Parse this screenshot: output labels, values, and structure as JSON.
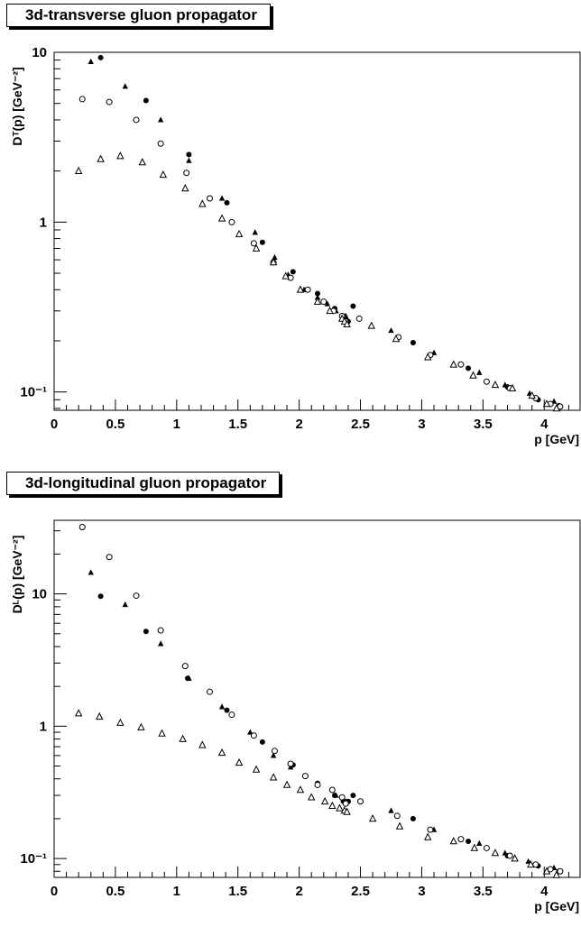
{
  "chart_data": [
    {
      "type": "scatter",
      "title": "3d-transverse gluon propagator",
      "xlabel": "p [GeV]",
      "ylabel": "Dᵀ(p) [GeV⁻²]",
      "xlim": [
        0,
        4.3
      ],
      "ylim": [
        0.078,
        10
      ],
      "yscale": "log",
      "xticks": [
        0,
        0.5,
        1,
        1.5,
        2,
        2.5,
        3,
        3.5,
        4
      ],
      "xtick_labels": [
        "0",
        "0.5",
        "1",
        "1.5",
        "2",
        "2.5",
        "3",
        "3.5",
        "4"
      ],
      "yticks": [
        0.1,
        1,
        10
      ],
      "ytick_labels": [
        "10⁻¹",
        "1",
        "10"
      ],
      "grid": false,
      "series": [
        {
          "marker": "filled-triangle",
          "x": [
            0.3,
            0.58,
            0.87,
            1.1,
            1.37,
            1.64,
            1.8,
            1.91,
            2.04,
            2.15,
            2.23,
            2.3,
            2.38,
            2.75,
            3.1,
            3.47,
            3.68,
            3.88,
            4.08
          ],
          "y": [
            8.8,
            6.3,
            4.0,
            2.3,
            1.38,
            0.87,
            0.62,
            0.49,
            0.4,
            0.36,
            0.33,
            0.3,
            0.28,
            0.23,
            0.17,
            0.13,
            0.11,
            0.098,
            0.088
          ]
        },
        {
          "marker": "filled-circle",
          "x": [
            0.38,
            0.75,
            1.1,
            1.41,
            1.7,
            1.95,
            2.15,
            2.29,
            2.36,
            2.38,
            2.4,
            2.44,
            2.93,
            3.38,
            3.7,
            3.95,
            4.12
          ],
          "y": [
            9.3,
            5.2,
            2.5,
            1.3,
            0.76,
            0.51,
            0.38,
            0.31,
            0.28,
            0.27,
            0.26,
            0.32,
            0.195,
            0.138,
            0.107,
            0.09,
            0.083
          ]
        },
        {
          "marker": "open-circle",
          "x": [
            0.23,
            0.45,
            0.67,
            0.87,
            1.08,
            1.27,
            1.45,
            1.63,
            1.79,
            1.93,
            2.07,
            2.2,
            2.28,
            2.35,
            2.38,
            2.49,
            2.81,
            3.07,
            3.32,
            3.53,
            3.72,
            3.93,
            4.05,
            4.13
          ],
          "y": [
            5.3,
            5.1,
            4.0,
            2.9,
            1.95,
            1.38,
            1.0,
            0.75,
            0.58,
            0.47,
            0.4,
            0.34,
            0.3,
            0.28,
            0.26,
            0.27,
            0.21,
            0.165,
            0.145,
            0.115,
            0.105,
            0.092,
            0.085,
            0.082
          ]
        },
        {
          "marker": "open-triangle",
          "x": [
            0.2,
            0.38,
            0.54,
            0.72,
            0.89,
            1.07,
            1.21,
            1.37,
            1.51,
            1.65,
            1.79,
            1.89,
            2.01,
            2.15,
            2.25,
            2.35,
            2.37,
            2.39,
            2.59,
            2.79,
            3.05,
            3.26,
            3.42,
            3.6,
            3.74,
            3.9,
            4.02,
            4.1
          ],
          "y": [
            2.0,
            2.35,
            2.45,
            2.25,
            1.9,
            1.58,
            1.28,
            1.05,
            0.85,
            0.7,
            0.58,
            0.48,
            0.4,
            0.34,
            0.3,
            0.27,
            0.26,
            0.25,
            0.245,
            0.205,
            0.16,
            0.145,
            0.125,
            0.11,
            0.105,
            0.095,
            0.085,
            0.08
          ]
        }
      ]
    },
    {
      "type": "scatter",
      "title": "3d-longitudinal gluon propagator",
      "xlabel": "p [GeV]",
      "ylabel": "Dᴸ(p) [GeV⁻²]",
      "xlim": [
        0,
        4.3
      ],
      "ylim": [
        0.072,
        36
      ],
      "yscale": "log",
      "xticks": [
        0,
        0.5,
        1,
        1.5,
        2,
        2.5,
        3,
        3.5,
        4
      ],
      "xtick_labels": [
        "0",
        "0.5",
        "1",
        "1.5",
        "2",
        "2.5",
        "3",
        "3.5",
        "4"
      ],
      "yticks": [
        0.1,
        1,
        10
      ],
      "ytick_labels": [
        "10⁻¹",
        "1",
        "10"
      ],
      "grid": false,
      "series": [
        {
          "marker": "filled-triangle",
          "x": [
            0.3,
            0.58,
            0.87,
            1.1,
            1.37,
            1.6,
            1.79,
            1.93,
            2.15,
            2.3,
            2.38,
            2.75,
            3.1,
            3.47,
            3.68,
            3.87,
            4.08
          ],
          "y": [
            14.5,
            8.3,
            4.2,
            2.3,
            1.4,
            0.9,
            0.6,
            0.49,
            0.37,
            0.3,
            0.27,
            0.23,
            0.165,
            0.13,
            0.11,
            0.095,
            0.085
          ]
        },
        {
          "marker": "filled-circle",
          "x": [
            0.38,
            0.75,
            1.09,
            1.41,
            1.7,
            1.95,
            2.15,
            2.29,
            2.36,
            2.38,
            2.4,
            2.44,
            2.93,
            3.38,
            3.7,
            3.95,
            4.12
          ],
          "y": [
            9.6,
            5.2,
            2.3,
            1.32,
            0.76,
            0.51,
            0.37,
            0.3,
            0.27,
            0.26,
            0.27,
            0.3,
            0.2,
            0.135,
            0.105,
            0.088,
            0.08
          ]
        },
        {
          "marker": "open-circle",
          "x": [
            0.23,
            0.45,
            0.67,
            0.87,
            1.07,
            1.27,
            1.45,
            1.63,
            1.8,
            1.93,
            2.05,
            2.15,
            2.27,
            2.35,
            2.38,
            2.5,
            2.8,
            3.07,
            3.32,
            3.53,
            3.72,
            3.93,
            4.05,
            4.13
          ],
          "y": [
            32,
            19,
            9.7,
            5.3,
            2.85,
            1.82,
            1.22,
            0.85,
            0.65,
            0.52,
            0.42,
            0.36,
            0.33,
            0.29,
            0.26,
            0.27,
            0.21,
            0.165,
            0.14,
            0.12,
            0.105,
            0.09,
            0.083,
            0.08
          ]
        },
        {
          "marker": "open-triangle",
          "x": [
            0.2,
            0.37,
            0.54,
            0.71,
            0.88,
            1.05,
            1.21,
            1.37,
            1.51,
            1.65,
            1.79,
            1.9,
            2.01,
            2.1,
            2.21,
            2.27,
            2.33,
            2.37,
            2.39,
            2.6,
            2.82,
            3.05,
            3.26,
            3.43,
            3.6,
            3.76,
            3.89,
            4.02,
            4.1
          ],
          "y": [
            1.25,
            1.18,
            1.06,
            0.98,
            0.88,
            0.8,
            0.72,
            0.63,
            0.53,
            0.47,
            0.41,
            0.36,
            0.33,
            0.29,
            0.27,
            0.25,
            0.24,
            0.23,
            0.225,
            0.2,
            0.175,
            0.145,
            0.135,
            0.12,
            0.11,
            0.1,
            0.09,
            0.08,
            0.075
          ]
        }
      ]
    }
  ]
}
